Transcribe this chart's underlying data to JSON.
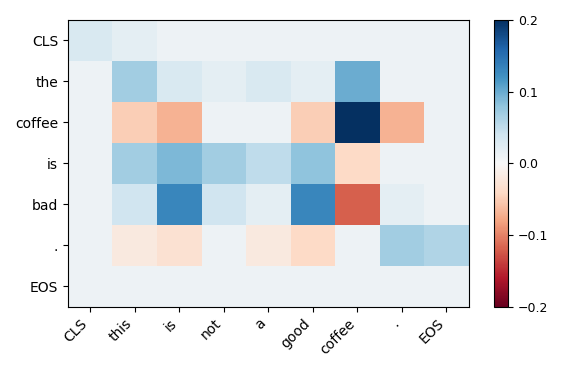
{
  "y_labels": [
    "CLS",
    "the",
    "coffee",
    "is",
    "bad",
    ".",
    "EOS"
  ],
  "x_labels": [
    "CLS",
    "this",
    "is",
    "not",
    "a",
    "good",
    "coffee",
    ".",
    "EOS"
  ],
  "matrix": [
    [
      0.03,
      0.02,
      0.01,
      0.01,
      0.01,
      0.01,
      0.01,
      0.01,
      0.01
    ],
    [
      0.01,
      0.07,
      0.03,
      0.02,
      0.03,
      0.02,
      0.1,
      0.01,
      0.01
    ],
    [
      0.01,
      -0.05,
      -0.07,
      0.01,
      0.01,
      -0.05,
      0.22,
      -0.07,
      0.01
    ],
    [
      0.01,
      0.07,
      0.09,
      0.07,
      0.05,
      0.08,
      -0.04,
      0.01,
      0.01
    ],
    [
      0.01,
      0.04,
      0.13,
      0.04,
      0.02,
      0.13,
      -0.12,
      0.02,
      0.01
    ],
    [
      0.01,
      -0.02,
      -0.03,
      0.01,
      -0.02,
      -0.04,
      0.01,
      0.07,
      0.06
    ],
    [
      0.01,
      0.01,
      0.01,
      0.01,
      0.01,
      0.01,
      0.01,
      0.01,
      0.01
    ]
  ],
  "vmin": -0.2,
  "vmax": 0.2,
  "cmap": "RdBu",
  "figsize": [
    5.84,
    3.72
  ],
  "dpi": 100,
  "colorbar_ticks": [
    -0.2,
    -0.1,
    0.0,
    0.1,
    0.2
  ]
}
